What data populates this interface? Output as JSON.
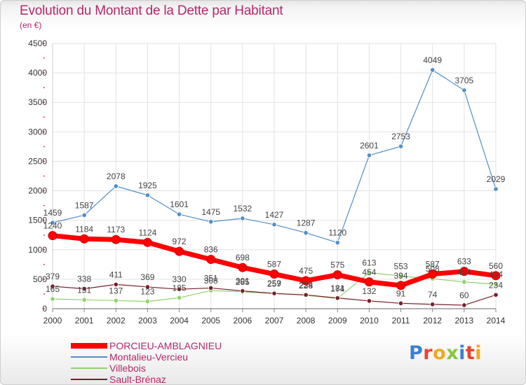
{
  "header": {
    "title": "Evolution du Montant de la Dette par Habitant",
    "subtitle": "(en €)"
  },
  "logo": {
    "text": "Proxiti"
  },
  "chart_data": {
    "type": "line",
    "title": "Evolution du Montant de la Dette par Habitant",
    "subtitle": "(en €)",
    "x": [
      2000,
      2001,
      2002,
      2003,
      2004,
      2005,
      2006,
      2007,
      2008,
      2009,
      2010,
      2011,
      2012,
      2013,
      2014
    ],
    "ylim": [
      0,
      4500
    ],
    "yticks": [
      0,
      500,
      1000,
      1500,
      2000,
      2500,
      3000,
      3500,
      4000,
      4500
    ],
    "grid": true,
    "legend_position": "bottom-left",
    "series": [
      {
        "name": "PORCIEU-AMBLAGNIEU",
        "color": "#ff0000",
        "values": [
          1240,
          1184,
          1173,
          1124,
          972,
          836,
          698,
          587,
          475,
          575,
          454,
          394,
          587,
          633,
          560
        ]
      },
      {
        "name": "Montalieu-Vercieu",
        "color": "#4f8fc9",
        "values": [
          1459,
          1587,
          2078,
          1925,
          1601,
          1475,
          1532,
          1427,
          1287,
          1120,
          2601,
          2753,
          4049,
          3705,
          2029
        ]
      },
      {
        "name": "Villebois",
        "color": "#8ed46b",
        "values": [
          165,
          151,
          137,
          123,
          185,
          308,
          285,
          257,
          228,
          174,
          613,
          553,
          508,
          454,
          414
        ]
      },
      {
        "name": "Sault-Brénaz",
        "color": "#7a1e2a",
        "values": [
          379,
          338,
          411,
          369,
          330,
          351,
          301,
          259,
          234,
          181,
          132,
          91,
          74,
          60,
          234
        ]
      }
    ]
  }
}
